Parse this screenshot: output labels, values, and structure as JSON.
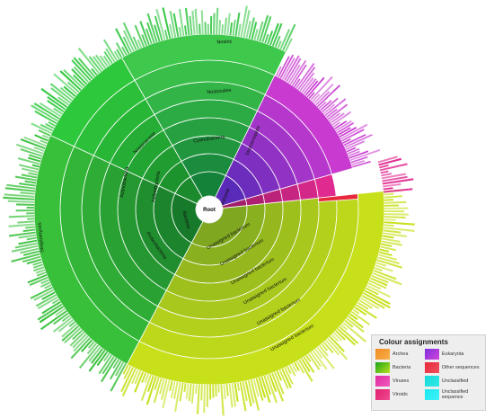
{
  "diagram": {
    "root_label": "Root",
    "labels": {
      "bacteria": "Bacteria",
      "eukaryota": "Eukaryota",
      "unassigned_1": "Unassigned bacterium",
      "unassigned_2": "Unassigned bacterium",
      "unassigned_3": "Unassigned bacterium",
      "unassigned_4": "Unassigned bacterium",
      "unassigned_5": "Unassigned bacterium",
      "unassigned_6": "Unassigned bacterium",
      "proteobacteria": "Proteobacteria",
      "actinobacteria_1": "Actinobacteria",
      "actinobacteria_2": "Actinobacteria",
      "cyanobacteria": "Cyanobacteria",
      "nostocales": "Nostocales",
      "nostoc": "Nostoc",
      "nostocaceae": "Nostocaceae",
      "streptomyces": "Streptomyces",
      "eukaryote_clade": "Stramenopiles"
    }
  },
  "legend": {
    "title": "Colour assignments",
    "items": [
      {
        "label": "Archea",
        "color_a": "#f08a24",
        "color_b": "#f8b04a"
      },
      {
        "label": "Eukaryota",
        "color_a": "#7f2fe0",
        "color_b": "#d243d8"
      },
      {
        "label": "Bacteria",
        "color_a": "#1aa61a",
        "color_b": "#b8e01c"
      },
      {
        "label": "Other sequences",
        "color_a": "#e8283c",
        "color_b": "#f0505e"
      },
      {
        "label": "Viruses",
        "color_a": "#e02ca0",
        "color_b": "#f05ac0"
      },
      {
        "label": "Unclassified",
        "color_a": "#1ad8d8",
        "color_b": "#30e8e8"
      },
      {
        "label": "Viroids",
        "color_a": "#e02070",
        "color_b": "#f04a90"
      },
      {
        "label": "Unclassified sequence",
        "color_a": "#18e8f0",
        "color_b": "#40f2f8"
      }
    ]
  }
}
